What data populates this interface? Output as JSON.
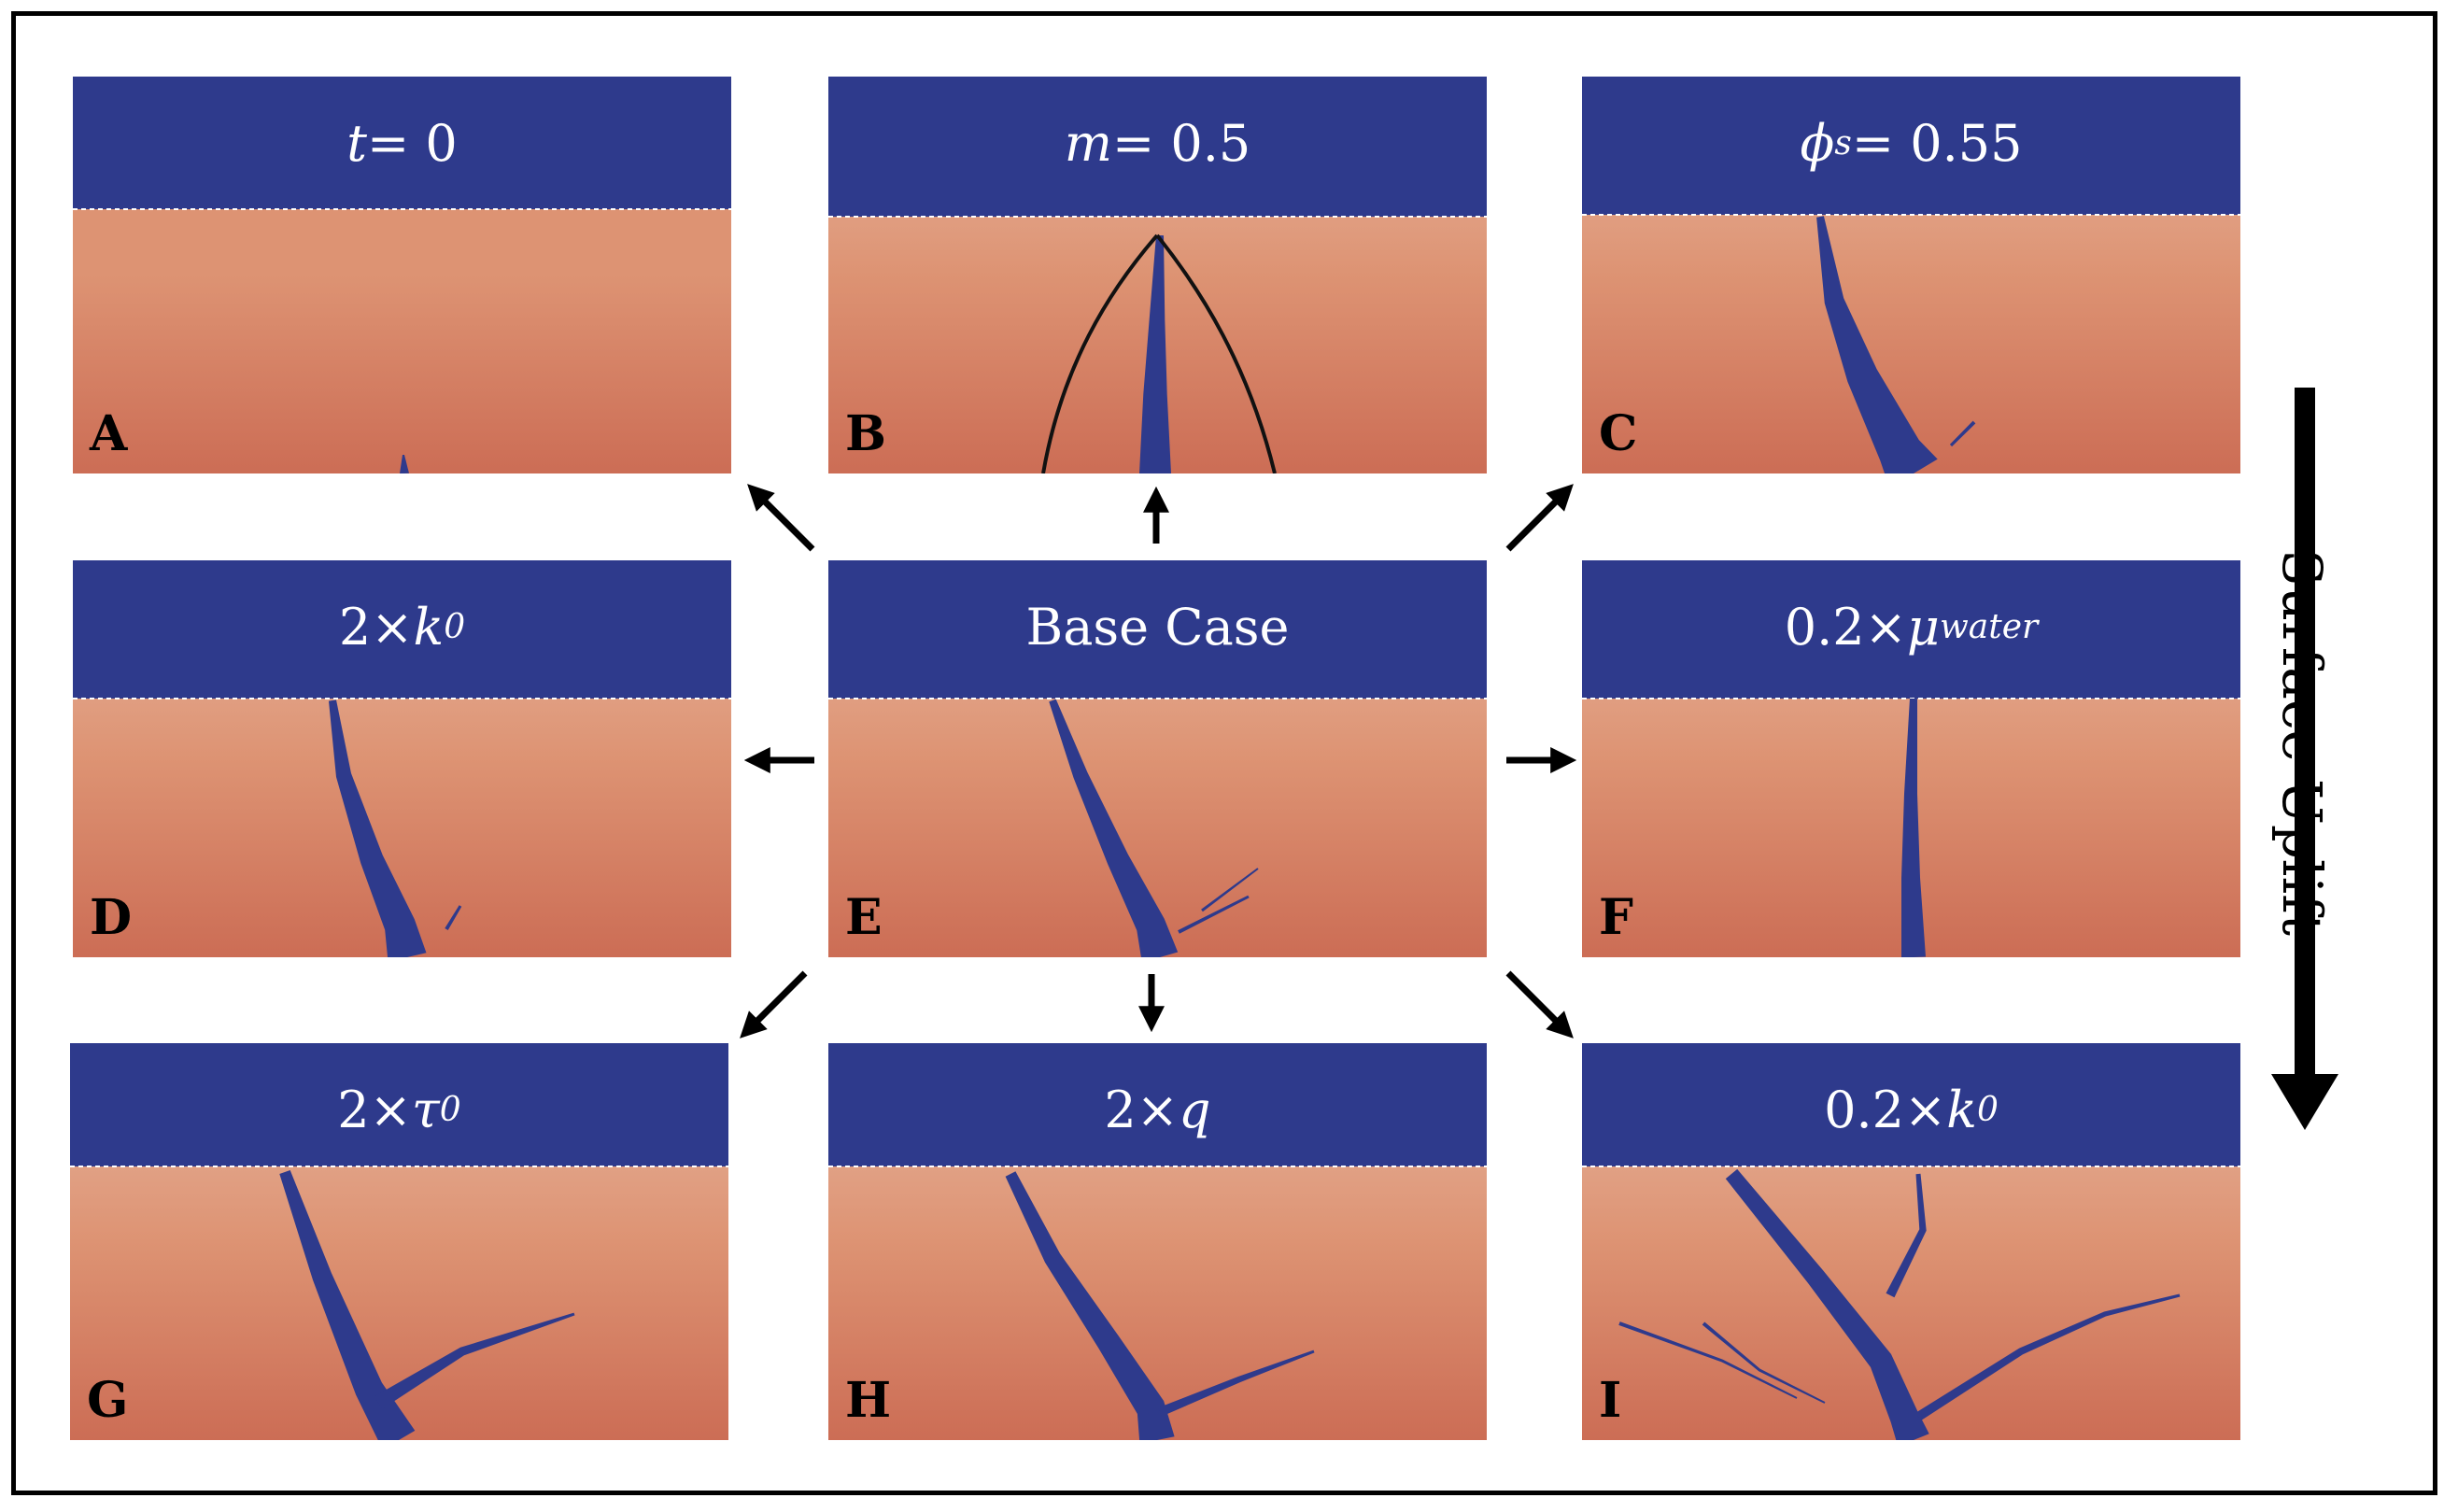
{
  "colors": {
    "fluid_blue": "#2e3a8c",
    "sediment_light": "#e7b6a0",
    "sediment_mid": "#dd9373",
    "sediment_deep": "#cc6d55",
    "interface_line": "#ffffff",
    "front_line": "#111111"
  },
  "side_label": "Surface Uplift",
  "panels": [
    {
      "letter": "A",
      "title_parts": [
        {
          "text": "t",
          "italic": true
        },
        {
          "text": " = 0"
        }
      ]
    },
    {
      "letter": "B",
      "title_parts": [
        {
          "text": "m",
          "italic": true
        },
        {
          "text": " = 0.5"
        }
      ]
    },
    {
      "letter": "C",
      "title_parts": [
        {
          "text": "ϕ",
          "italic": true
        },
        {
          "text": "s",
          "sub": true
        },
        {
          "text": " = 0.55"
        }
      ]
    },
    {
      "letter": "D",
      "title_parts": [
        {
          "text": "2×"
        },
        {
          "text": "k",
          "italic": true
        },
        {
          "text": "0",
          "sub": true
        }
      ]
    },
    {
      "letter": "E",
      "title_parts": [
        {
          "text": "Base Case"
        }
      ]
    },
    {
      "letter": "F",
      "title_parts": [
        {
          "text": "0.2×"
        },
        {
          "text": "μ",
          "italic": true
        },
        {
          "text": "water",
          "sub": true
        }
      ]
    },
    {
      "letter": "G",
      "title_parts": [
        {
          "text": "2×"
        },
        {
          "text": "τ",
          "italic": true
        },
        {
          "text": "0",
          "sub": true
        }
      ]
    },
    {
      "letter": "H",
      "title_parts": [
        {
          "text": "2×"
        },
        {
          "text": "q",
          "italic": true
        }
      ]
    },
    {
      "letter": "I",
      "title_parts": [
        {
          "text": "0.2×"
        },
        {
          "text": "k",
          "italic": true
        },
        {
          "text": "0",
          "sub": true
        }
      ]
    }
  ]
}
